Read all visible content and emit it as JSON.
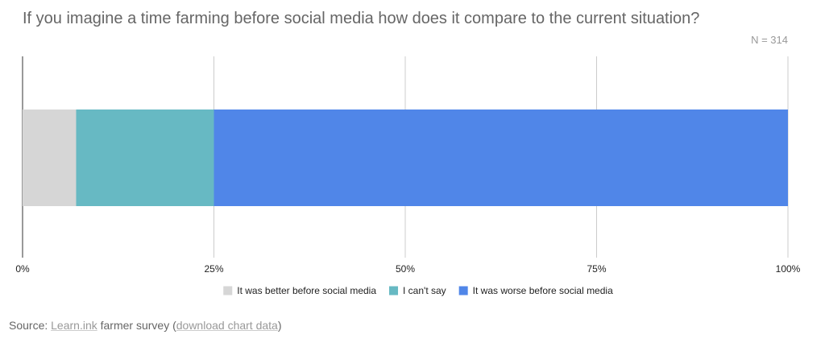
{
  "chart_data": {
    "type": "bar",
    "orientation": "horizontal",
    "stacked": true,
    "title": "If you imagine a time farming before social media how does it compare to the current situation?",
    "subtitle": "N = 314",
    "xlim": [
      0,
      100
    ],
    "x_ticks": [
      "0%",
      "25%",
      "50%",
      "75%",
      "100%"
    ],
    "x_tick_values": [
      0,
      25,
      50,
      75,
      100
    ],
    "grid": true,
    "legend_position": "bottom",
    "series": [
      {
        "name": "It was better before social media",
        "value": 7,
        "color": "#d6d6d6"
      },
      {
        "name": "I can't say",
        "value": 18,
        "color": "#67b9c3"
      },
      {
        "name": "It was worse before social media",
        "value": 75,
        "color": "#5086e8"
      }
    ]
  },
  "source": {
    "prefix": "Source: ",
    "link1": "Learn.ink",
    "middle": " farmer survey (",
    "link2": "download chart data",
    "suffix": ")"
  }
}
